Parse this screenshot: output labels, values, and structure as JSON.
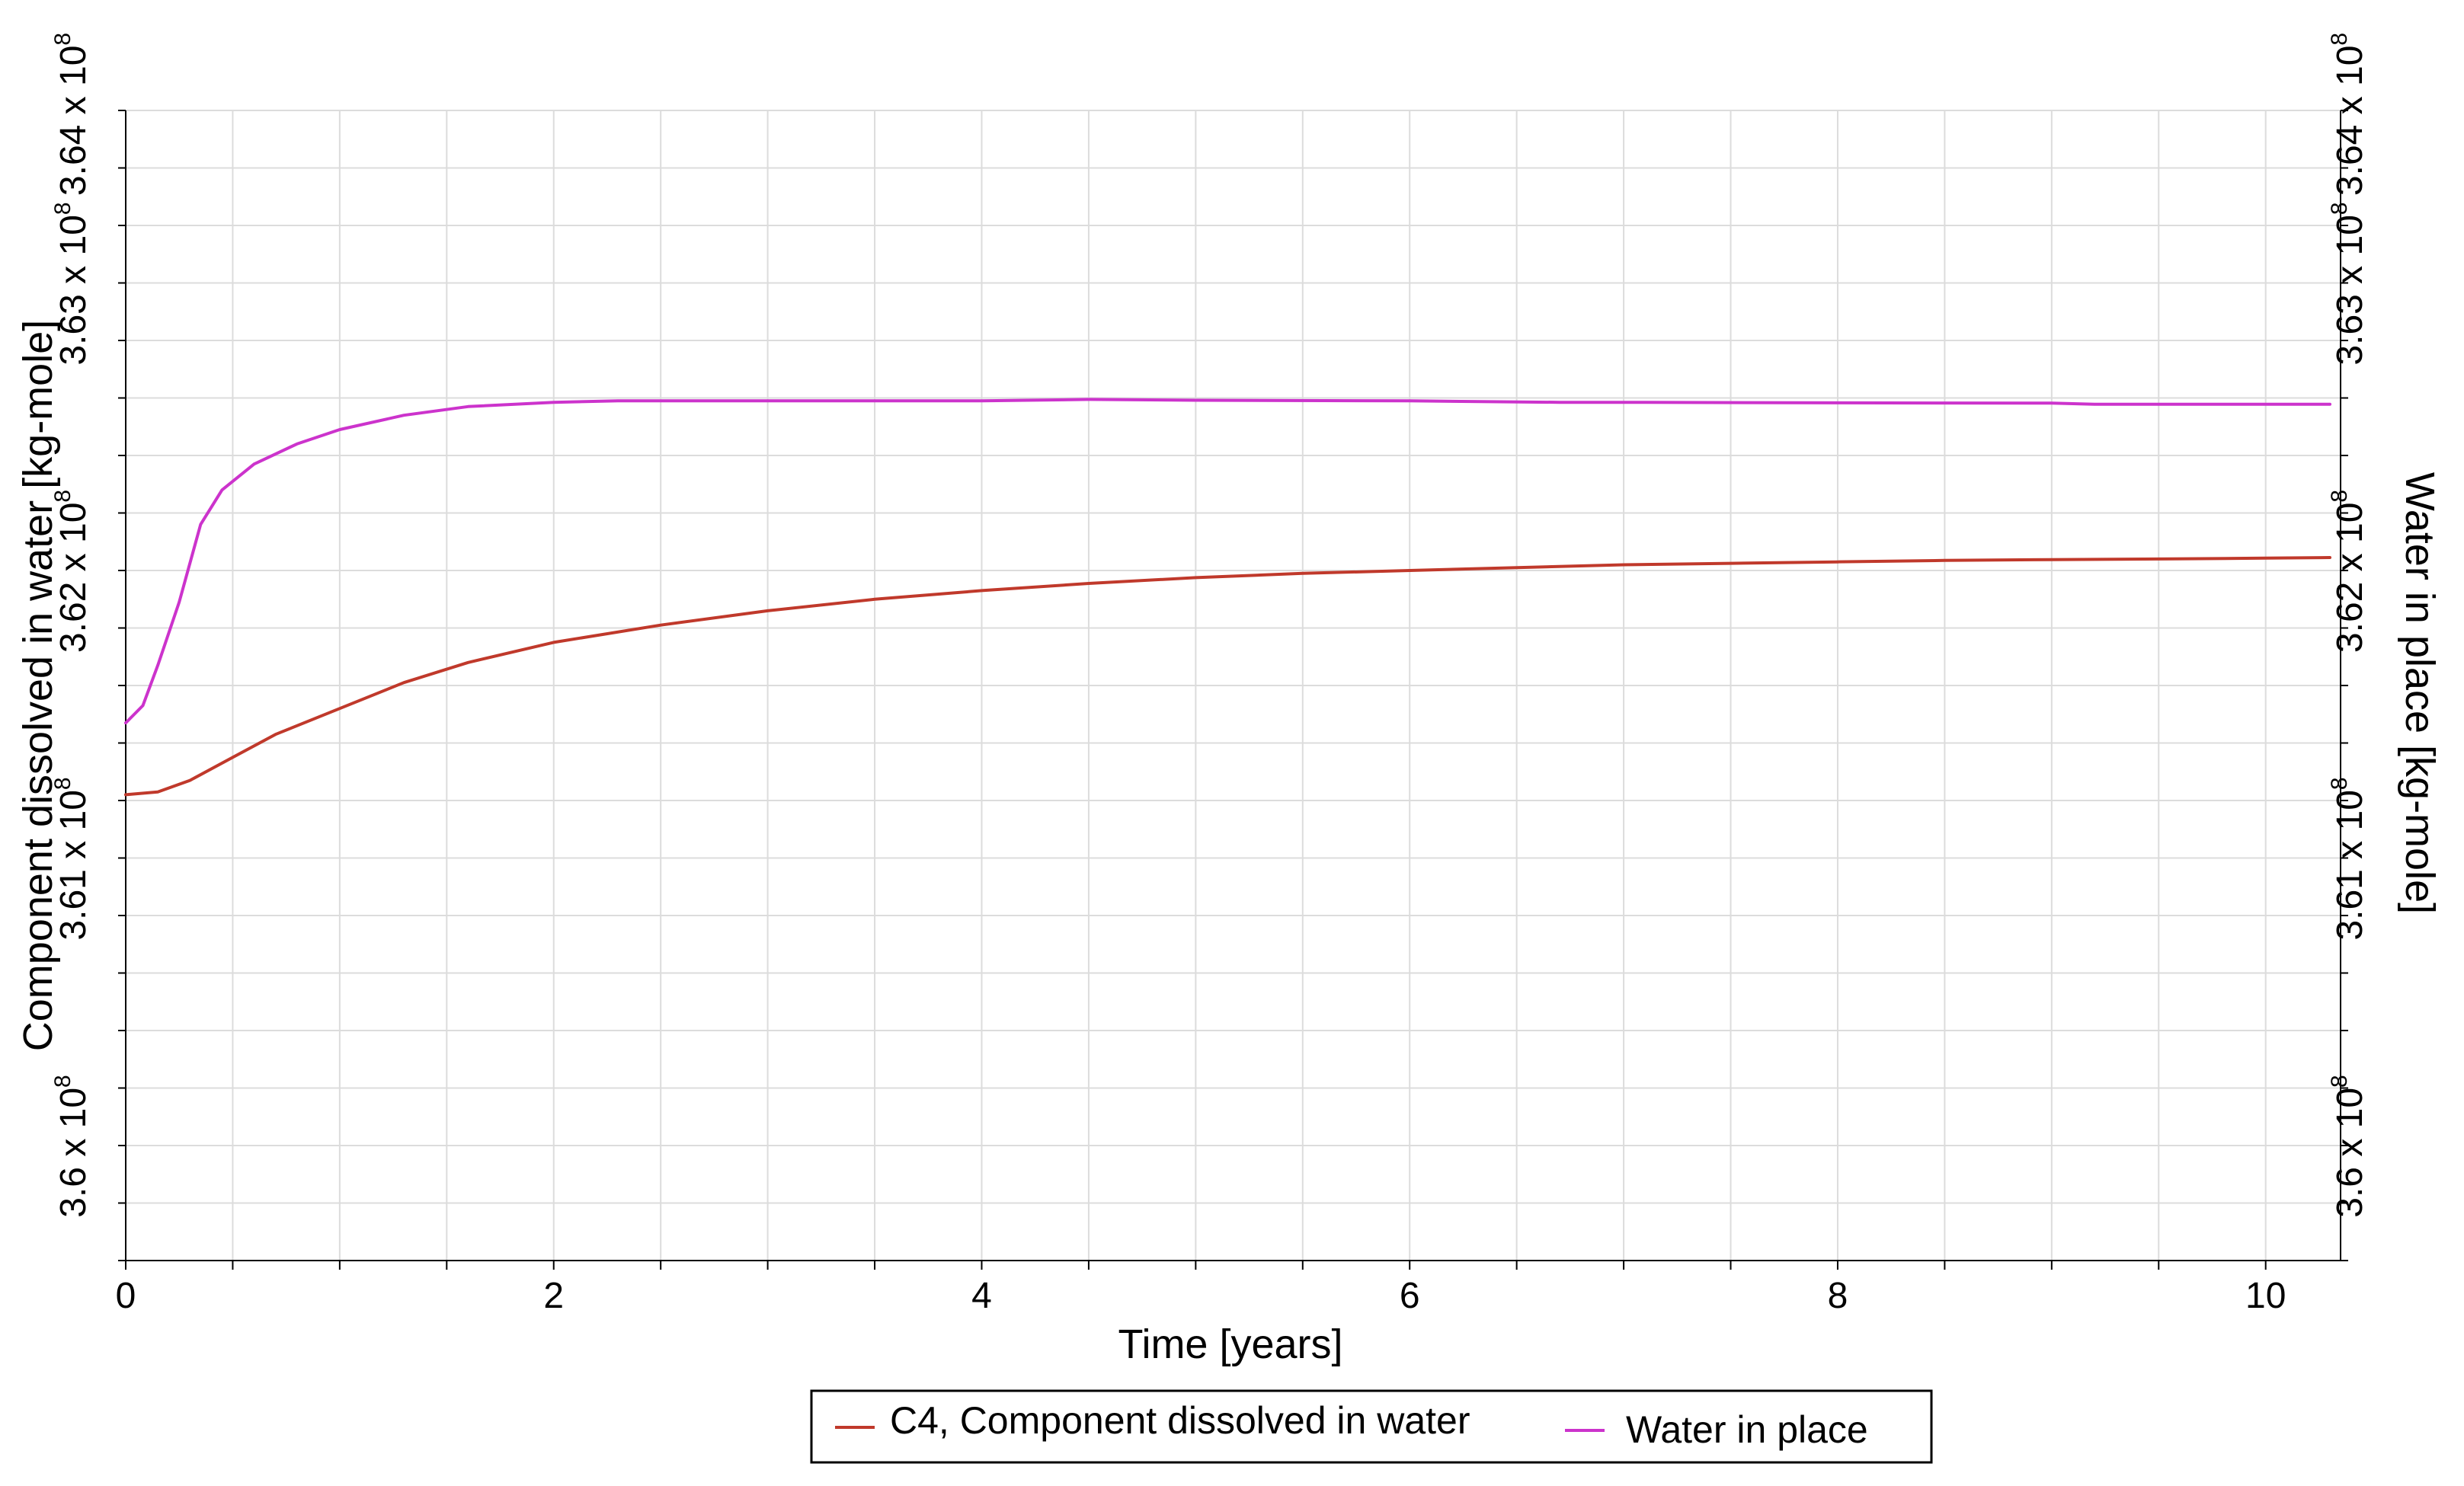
{
  "chart_data": {
    "type": "line",
    "title": "",
    "xlabel": "Time [years]",
    "ylabel_left": "Component dissolved in water [kg-mole]",
    "ylabel_right": "Water in place [kg-mole]",
    "xlim": [
      0,
      10.35
    ],
    "ylim_left": [
      360000000,
      364000000
    ],
    "ylim_right": [
      360000000,
      364000000
    ],
    "x_ticks": [
      0,
      2,
      4,
      6,
      8,
      10
    ],
    "x_tick_labels": [
      "0",
      "2",
      "4",
      "6",
      "8",
      "10"
    ],
    "y_ticks": [
      360000000,
      361000000,
      362000000,
      363000000,
      364000000
    ],
    "y_tick_labels": [
      {
        "mantissa": "3.6",
        "times": "x",
        "base": "10",
        "exp": "8"
      },
      {
        "mantissa": "3.61",
        "times": "x",
        "base": "10",
        "exp": "8"
      },
      {
        "mantissa": "3.62",
        "times": "x",
        "base": "10",
        "exp": "8"
      },
      {
        "mantissa": "3.63",
        "times": "x",
        "base": "10",
        "exp": "8"
      },
      {
        "mantissa": "3.64",
        "times": "x",
        "base": "10",
        "exp": "8"
      }
    ],
    "grid": true,
    "legend_position": "bottom-center",
    "series": [
      {
        "name": "C4, Component dissolved in water",
        "color": "#c0392b",
        "axis": "left",
        "x": [
          0,
          0.15,
          0.3,
          0.5,
          0.7,
          1.0,
          1.3,
          1.6,
          2.0,
          2.5,
          3.0,
          3.5,
          4.0,
          4.5,
          5.0,
          5.5,
          6.0,
          6.5,
          7.0,
          7.5,
          8.0,
          8.5,
          9.0,
          9.5,
          10.0,
          10.3
        ],
        "values": [
          361620000,
          361630000,
          361670000,
          361750000,
          361830000,
          361920000,
          362010000,
          362080000,
          362150000,
          362210000,
          362260000,
          362300000,
          362330000,
          362355000,
          362375000,
          362390000,
          362400000,
          362410000,
          362420000,
          362425000,
          362430000,
          362435000,
          362438000,
          362440000,
          362443000,
          362445000
        ]
      },
      {
        "name": "Water in place",
        "color": "#cc33cc",
        "axis": "right",
        "x": [
          0,
          0.08,
          0.15,
          0.25,
          0.35,
          0.45,
          0.6,
          0.8,
          1.0,
          1.3,
          1.6,
          2.0,
          2.3,
          3.0,
          4.0,
          4.5,
          5.0,
          6.0,
          6.7,
          7.0,
          8.0,
          9.0,
          9.2,
          10.0,
          10.3
        ],
        "values": [
          361870000,
          361930000,
          362070000,
          362290000,
          362560000,
          362680000,
          362770000,
          362840000,
          362890000,
          362940000,
          362970000,
          362985000,
          362990000,
          362990000,
          362990000,
          362995000,
          362992000,
          362990000,
          362985000,
          362985000,
          362983000,
          362982000,
          362978000,
          362978000,
          362978000
        ]
      }
    ]
  }
}
